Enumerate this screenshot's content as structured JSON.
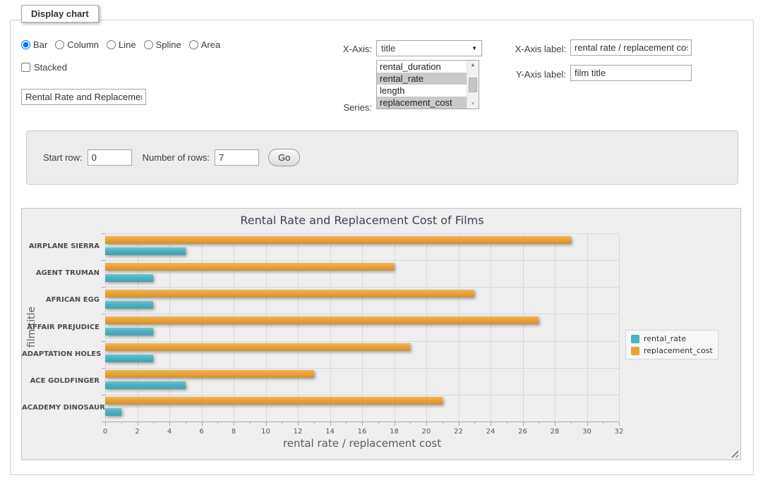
{
  "panel_legend": "Display chart",
  "icons": {
    "select_arrow": "▼",
    "scroll_up": "▲",
    "scroll_down": "▼"
  },
  "controls": {
    "chart_types": [
      {
        "label": "Bar",
        "selected": true
      },
      {
        "label": "Column",
        "selected": false
      },
      {
        "label": "Line",
        "selected": false
      },
      {
        "label": "Spline",
        "selected": false
      },
      {
        "label": "Area",
        "selected": false
      }
    ],
    "stacked": {
      "label": "Stacked",
      "checked": false
    },
    "chart_title_input": {
      "value": "Rental Rate and Replacement Cost of Films"
    },
    "x_axis": {
      "label": "X-Axis:",
      "value": "title"
    },
    "series": {
      "label": "Series:",
      "options": [
        {
          "label": "rental_duration",
          "selected": false
        },
        {
          "label": "rental_rate",
          "selected": true
        },
        {
          "label": "length",
          "selected": false
        },
        {
          "label": "replacement_cost",
          "selected": true
        }
      ]
    },
    "x_axis_label": {
      "label": "X-Axis label:",
      "value": "rental rate / replacement cost"
    },
    "y_axis_label": {
      "label": "Y-Axis label:",
      "value": "film title"
    }
  },
  "row_form": {
    "start_row_label": "Start row:",
    "start_row_value": "0",
    "rows_label": "Number of rows:",
    "rows_value": "7",
    "go_label": "Go"
  },
  "chart_data": {
    "type": "bar",
    "title": "Rental Rate and Replacement Cost of Films",
    "xlabel": "rental rate / replacement cost",
    "ylabel": "film title",
    "categories": [
      "AIRPLANE SIERRA",
      "AGENT TRUMAN",
      "AFRICAN EGG",
      "AFFAIR PREJUDICE",
      "ADAPTATION HOLES",
      "ACE GOLDFINGER",
      "ACADEMY DINOSAUR"
    ],
    "series": [
      {
        "name": "rental_rate",
        "color": "#4AB1C3",
        "values": [
          4.99,
          2.99,
          2.99,
          2.99,
          2.99,
          4.99,
          0.99
        ]
      },
      {
        "name": "replacement_cost",
        "color": "#E9A236",
        "values": [
          28.99,
          17.99,
          22.99,
          26.99,
          18.99,
          12.99,
          20.99
        ]
      }
    ],
    "xlim": [
      0,
      32
    ],
    "x_tick_step": 2,
    "x_minor_tick_step": 1,
    "grid": true,
    "legend_position": "right",
    "bar_draw_order": [
      "replacement_cost",
      "rental_rate"
    ]
  }
}
